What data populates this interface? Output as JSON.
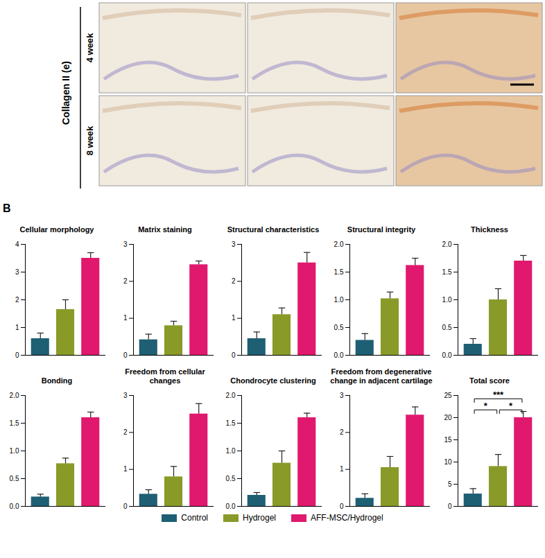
{
  "figure": {
    "panel_a": {
      "stain": "Collagen II (e)",
      "rows": [
        "4 week",
        "8 week"
      ]
    },
    "panel_b": "B"
  },
  "chart_data": [
    {
      "type": "bar",
      "title": "Cellular morphology",
      "categories": [
        "Control",
        "Hydrogel",
        "AFF-MSC/Hydrogel"
      ],
      "colors": [
        "#1e5f74",
        "#8a9a28",
        "#e0196e"
      ],
      "values": [
        0.6,
        1.65,
        3.5
      ],
      "errors": [
        0.2,
        0.35,
        0.2
      ],
      "ylim": [
        0,
        4
      ],
      "yticks": [
        0,
        1,
        2,
        3,
        4
      ],
      "tick_labels": "y"
    },
    {
      "type": "bar",
      "title": "Matrix staining",
      "categories": [
        "Control",
        "Hydrogel",
        "AFF-MSC/Hydrogel"
      ],
      "colors": [
        "#1e5f74",
        "#8a9a28",
        "#e0196e"
      ],
      "values": [
        0.42,
        0.8,
        2.45
      ],
      "errors": [
        0.15,
        0.12,
        0.1
      ],
      "ylim": [
        0,
        3
      ],
      "yticks": [
        0,
        1,
        2,
        3
      ],
      "tick_labels": "y"
    },
    {
      "type": "bar",
      "title": "Structural characteristics",
      "categories": [
        "Control",
        "Hydrogel",
        "AFF-MSC/Hydrogel"
      ],
      "colors": [
        "#1e5f74",
        "#8a9a28",
        "#e0196e"
      ],
      "values": [
        0.45,
        1.1,
        2.5
      ],
      "errors": [
        0.18,
        0.18,
        0.28
      ],
      "ylim": [
        0,
        3
      ],
      "yticks": [
        0,
        1,
        2,
        3
      ],
      "tick_labels": "y"
    },
    {
      "type": "bar",
      "title": "Structural integrity",
      "categories": [
        "Control",
        "Hydrogel",
        "AFF-MSC/Hydrogel"
      ],
      "colors": [
        "#1e5f74",
        "#8a9a28",
        "#e0196e"
      ],
      "values": [
        0.27,
        1.02,
        1.62
      ],
      "errors": [
        0.12,
        0.12,
        0.13
      ],
      "ylim": [
        0,
        2
      ],
      "yticks": [
        {
          "value": 0,
          "label": "0.0"
        },
        {
          "value": 0.5,
          "label": "0.5"
        },
        {
          "value": 1,
          "label": "1.0"
        },
        {
          "value": 1.5,
          "label": "1.5"
        },
        {
          "value": 2,
          "label": "2.0"
        }
      ],
      "tick_labels": "y"
    },
    {
      "type": "bar",
      "title": "Thickness",
      "categories": [
        "Control",
        "Hydrogel",
        "AFF-MSC/Hydrogel"
      ],
      "colors": [
        "#1e5f74",
        "#8a9a28",
        "#e0196e"
      ],
      "values": [
        0.2,
        1.0,
        1.7
      ],
      "errors": [
        0.1,
        0.2,
        0.1
      ],
      "ylim": [
        0,
        2
      ],
      "yticks": [
        {
          "value": 0,
          "label": "0.0"
        },
        {
          "value": 0.5,
          "label": "0.5"
        },
        {
          "value": 1,
          "label": "1.0"
        },
        {
          "value": 1.5,
          "label": "1.5"
        },
        {
          "value": 2,
          "label": "2.0"
        }
      ],
      "tick_labels": "y"
    },
    {
      "type": "bar",
      "title": "Bonding",
      "categories": [
        "Control",
        "Hydrogel",
        "AFF-MSC/Hydrogel"
      ],
      "colors": [
        "#1e5f74",
        "#8a9a28",
        "#e0196e"
      ],
      "values": [
        0.17,
        0.77,
        1.6
      ],
      "errors": [
        0.05,
        0.1,
        0.1
      ],
      "ylim": [
        0,
        2
      ],
      "yticks": [
        {
          "value": 0,
          "label": "0.0"
        },
        {
          "value": 0.5,
          "label": "0.5"
        },
        {
          "value": 1,
          "label": "1.0"
        },
        {
          "value": 1.5,
          "label": "1.5"
        },
        {
          "value": 2,
          "label": "2.0"
        }
      ],
      "tick_labels": "y"
    },
    {
      "type": "bar",
      "title": "Freedom from cellular changes",
      "categories": [
        "Control",
        "Hydrogel",
        "AFF-MSC/Hydrogel"
      ],
      "colors": [
        "#1e5f74",
        "#8a9a28",
        "#e0196e"
      ],
      "values": [
        0.33,
        0.8,
        2.5
      ],
      "errors": [
        0.12,
        0.28,
        0.28
      ],
      "ylim": [
        0,
        3
      ],
      "yticks": [
        0,
        1,
        2,
        3
      ],
      "tick_labels": "y"
    },
    {
      "type": "bar",
      "title": "Chondrocyte clustering",
      "categories": [
        "Control",
        "Hydrogel",
        "AFF-MSC/Hydrogel"
      ],
      "colors": [
        "#1e5f74",
        "#8a9a28",
        "#e0196e"
      ],
      "values": [
        0.2,
        0.78,
        1.6
      ],
      "errors": [
        0.05,
        0.22,
        0.08
      ],
      "ylim": [
        0,
        2
      ],
      "yticks": [
        {
          "value": 0,
          "label": "0.0"
        },
        {
          "value": 0.5,
          "label": "0.5"
        },
        {
          "value": 1,
          "label": "1.0"
        },
        {
          "value": 1.5,
          "label": "1.5"
        },
        {
          "value": 2,
          "label": "2.0"
        }
      ],
      "tick_labels": "y"
    },
    {
      "type": "bar",
      "title": "Freedom from degenerative change in adjacent cartilage",
      "categories": [
        "Control",
        "Hydrogel",
        "AFF-MSC/Hydrogel"
      ],
      "colors": [
        "#1e5f74",
        "#8a9a28",
        "#e0196e"
      ],
      "values": [
        0.22,
        1.05,
        2.47
      ],
      "errors": [
        0.12,
        0.3,
        0.22
      ],
      "ylim": [
        0,
        3
      ],
      "yticks": [
        0,
        1,
        2,
        3
      ],
      "tick_labels": "y"
    },
    {
      "type": "bar",
      "title": "Total score",
      "categories": [
        "Control",
        "Hydrogel",
        "AFF-MSC/Hydrogel"
      ],
      "colors": [
        "#1e5f74",
        "#8a9a28",
        "#e0196e"
      ],
      "values": [
        2.8,
        9.0,
        20.0
      ],
      "errors": [
        1.2,
        2.7,
        1.4
      ],
      "ylim": [
        0,
        25
      ],
      "yticks": [
        0,
        5,
        10,
        15,
        20,
        25
      ],
      "tick_labels": "y",
      "annotations": [
        {
          "from": "Control",
          "to": "AFF-MSC/Hydrogel",
          "text": "***"
        },
        {
          "from": "Control",
          "to": "Hydrogel",
          "text": "*"
        },
        {
          "from": "Hydrogel",
          "to": "AFF-MSC/Hydrogel",
          "text": "*"
        }
      ]
    }
  ]
}
